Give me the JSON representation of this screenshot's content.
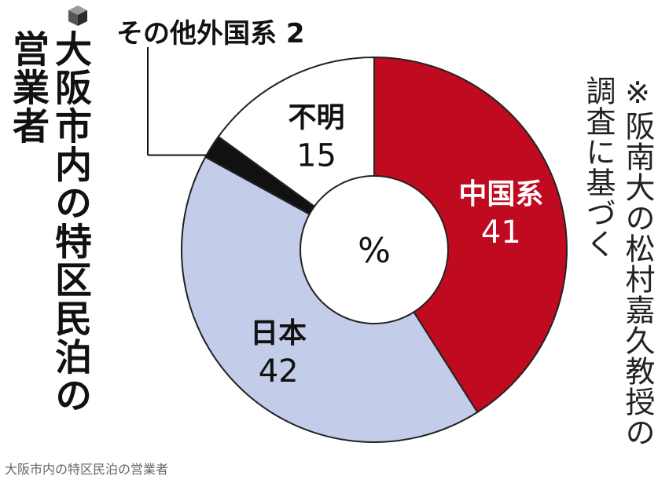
{
  "title": {
    "line1": "大阪市内の特区民泊の",
    "line2": "営業者"
  },
  "note": {
    "line1": "※阪南大の松村嘉久教授の",
    "line2": "調査に基づく"
  },
  "caption": "大阪市内の特区民泊の営業者",
  "chart_data": {
    "type": "pie",
    "style": "donut",
    "center_label": "%",
    "slices": [
      {
        "label": "中国系",
        "value": 41,
        "color": "#c00a20"
      },
      {
        "label": "日本",
        "value": 42,
        "color": "#c3cce8"
      },
      {
        "label": "その他外国系",
        "value": 2,
        "color": "#111111"
      },
      {
        "label": "不明",
        "value": 15,
        "color": "#ffffff"
      }
    ],
    "start_angle": "12 o'clock",
    "direction": "clockwise"
  },
  "colors": {
    "outline": "#222222",
    "text": "#111111"
  },
  "icons": {
    "title_bullet": "cube-icon"
  }
}
